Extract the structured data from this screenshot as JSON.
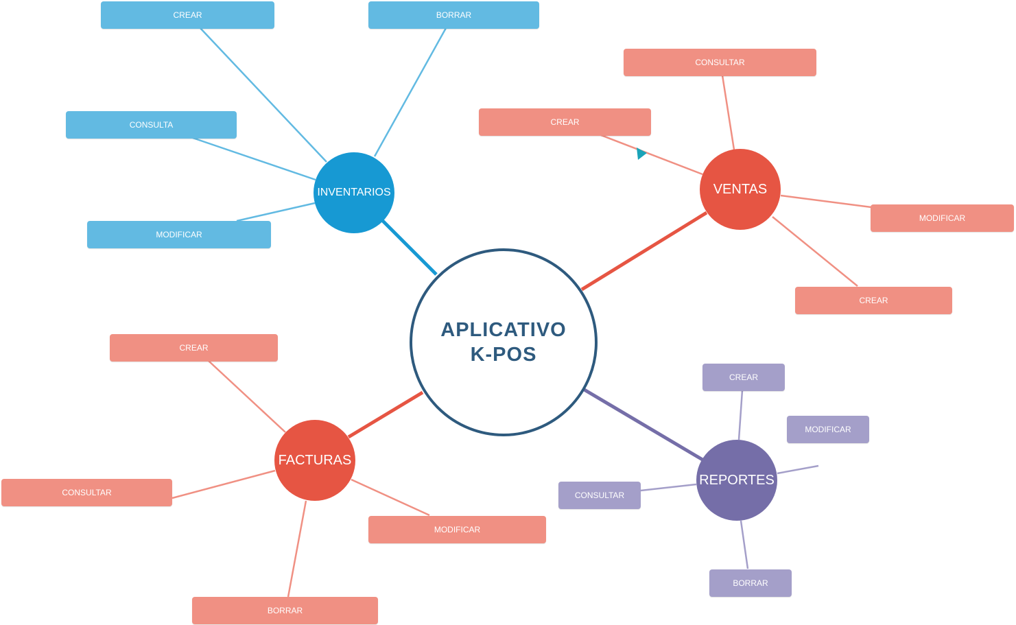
{
  "colors": {
    "center_border": "#2e5a7e",
    "inventarios": "#1799d3",
    "inventarios_leaf": "#62bae2",
    "ventas": "#e65543",
    "ventas_leaf": "#f09083",
    "facturas": "#e65543",
    "facturas_leaf": "#f09083",
    "reportes": "#756ea8",
    "reportes_leaf": "#a49fc9",
    "cursor": "#1aa3b8"
  },
  "center": {
    "line1": "APLICATIVO",
    "line2": "K-POS"
  },
  "inventarios": {
    "label": "INVENTARIOS",
    "items": [
      "CREAR",
      "BORRAR",
      "CONSULTA",
      "MODIFICAR"
    ]
  },
  "ventas": {
    "label": "VENTAS",
    "items": [
      "CONSULTAR",
      "CREAR",
      "MODIFICAR",
      "CREAR"
    ]
  },
  "facturas": {
    "label": "FACTURAS",
    "items": [
      "CREAR",
      "CONSULTAR",
      "MODIFICAR",
      "BORRAR"
    ]
  },
  "reportes": {
    "label": "REPORTES",
    "items": [
      "CREAR",
      "MODIFICAR",
      "CONSULTAR",
      "BORRAR"
    ]
  },
  "icons": [
    "cursor-arrow-icon"
  ]
}
